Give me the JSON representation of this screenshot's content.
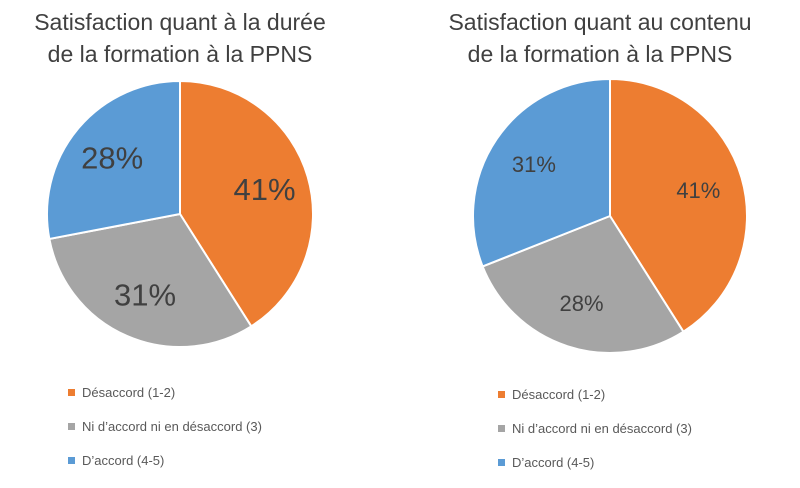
{
  "chart_data": [
    {
      "type": "pie",
      "title_lines": [
        "Satisfaction quant à la durée",
        "de la formation à la PPNS"
      ],
      "categories": [
        "Désaccord (1-2)",
        "Ni d’accord ni en désaccord (3)",
        "D’accord (4-5)"
      ],
      "values": [
        41,
        31,
        28
      ],
      "labels": [
        "41%",
        "31%",
        "28%"
      ],
      "colors": [
        "#ED7D31",
        "#A5A5A5",
        "#5B9BD5"
      ],
      "legend": "bottom"
    },
    {
      "type": "pie",
      "title_lines": [
        "Satisfaction quant au contenu",
        "de la formation à la PPNS"
      ],
      "categories": [
        "Désaccord (1-2)",
        "Ni d’accord ni en désaccord (3)",
        "D’accord (4-5)"
      ],
      "values": [
        41,
        28,
        31
      ],
      "labels": [
        "41%",
        "28%",
        "31%"
      ],
      "colors": [
        "#ED7D31",
        "#A5A5A5",
        "#5B9BD5"
      ],
      "legend": "bottom"
    }
  ]
}
